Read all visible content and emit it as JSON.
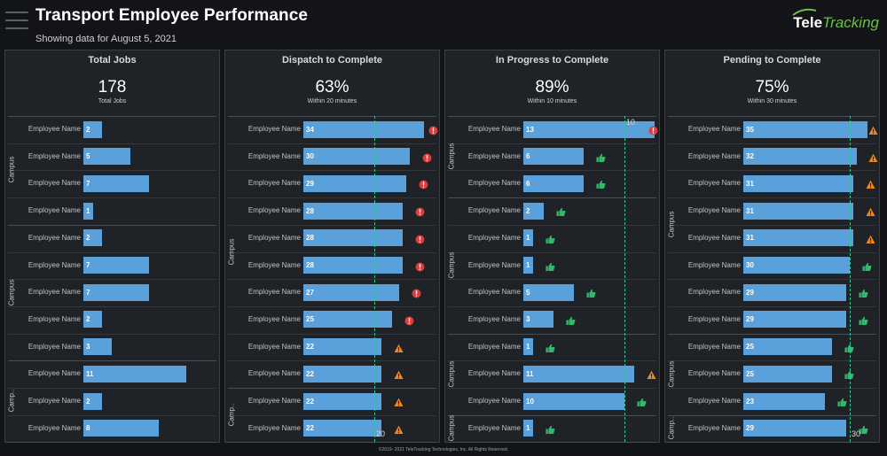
{
  "header": {
    "title": "Transport Employee Performance",
    "subtitle": "Showing data for August 5, 2021",
    "logo_text_1": "Tele",
    "logo_text_2": "Tracking"
  },
  "footer": {
    "text": "©2019- 2021 TeleTracking Technologies, Inc.  All Rights Reserved."
  },
  "colors": {
    "bar": "#5aa0db",
    "reference_line": "#33c89a",
    "alert": "#e03a3a",
    "warning": "#f0881c",
    "good": "#34b86c"
  },
  "panels": [
    {
      "title": "Total Jobs",
      "kpi_value": "178",
      "kpi_sub": "Total Jobs",
      "bar_max": 14,
      "reference": null,
      "reference_label": "",
      "campus_labels": [
        "Campus",
        "Campus",
        "Camp.."
      ],
      "rows": [
        {
          "label": "Employee Name",
          "value": 2,
          "status": ""
        },
        {
          "label": "Employee Name",
          "value": 5,
          "status": ""
        },
        {
          "label": "Employee Name",
          "value": 7,
          "status": ""
        },
        {
          "label": "Employee Name",
          "value": 1,
          "status": ""
        },
        {
          "label": "Employee Name",
          "value": 2,
          "status": ""
        },
        {
          "label": "Employee Name",
          "value": 7,
          "status": ""
        },
        {
          "label": "Employee Name",
          "value": 7,
          "status": ""
        },
        {
          "label": "Employee Name",
          "value": 2,
          "status": ""
        },
        {
          "label": "Employee Name",
          "value": 3,
          "status": ""
        },
        {
          "label": "Employee Name",
          "value": 11,
          "status": ""
        },
        {
          "label": "Employee Name",
          "value": 2,
          "status": ""
        },
        {
          "label": "Employee Name",
          "value": 8,
          "status": ""
        }
      ]
    },
    {
      "title": "Dispatch to Complete",
      "kpi_value": "63%",
      "kpi_sub": "Within 20 minutes",
      "bar_max": 37,
      "reference": 20,
      "reference_label": "20",
      "campus_labels": [
        "Campus",
        "Camp.."
      ],
      "rows": [
        {
          "label": "Employee Name",
          "value": 34,
          "status": "alert"
        },
        {
          "label": "Employee Name",
          "value": 30,
          "status": "alert"
        },
        {
          "label": "Employee Name",
          "value": 29,
          "status": "alert"
        },
        {
          "label": "Employee Name",
          "value": 28,
          "status": "alert"
        },
        {
          "label": "Employee Name",
          "value": 28,
          "status": "alert"
        },
        {
          "label": "Employee Name",
          "value": 28,
          "status": "alert"
        },
        {
          "label": "Employee Name",
          "value": 27,
          "status": "alert"
        },
        {
          "label": "Employee Name",
          "value": 25,
          "status": "alert"
        },
        {
          "label": "Employee Name",
          "value": 22,
          "status": "warning"
        },
        {
          "label": "Employee Name",
          "value": 22,
          "status": "warning"
        },
        {
          "label": "Employee Name",
          "value": 22,
          "status": "warning"
        },
        {
          "label": "Employee Name",
          "value": 22,
          "status": "warning"
        }
      ]
    },
    {
      "title": "In Progress to Complete",
      "kpi_value": "89%",
      "kpi_sub": "Within 10 minutes",
      "bar_max": 13,
      "reference": 10,
      "reference_label": "10",
      "campus_labels": [
        "Campus",
        "Campus",
        "Campus",
        "Campus"
      ],
      "rows": [
        {
          "label": "Employee Name",
          "value": 13,
          "status": "alert"
        },
        {
          "label": "Employee Name",
          "value": 6,
          "status": "good"
        },
        {
          "label": "Employee Name",
          "value": 6,
          "status": "good"
        },
        {
          "label": "Employee Name",
          "value": 2,
          "status": "good"
        },
        {
          "label": "Employee Name",
          "value": 1,
          "status": "good"
        },
        {
          "label": "Employee Name",
          "value": 1,
          "status": "good"
        },
        {
          "label": "Employee Name",
          "value": 5,
          "status": "good"
        },
        {
          "label": "Employee Name",
          "value": 3,
          "status": "good"
        },
        {
          "label": "Employee Name",
          "value": 1,
          "status": "good"
        },
        {
          "label": "Employee Name",
          "value": 11,
          "status": "warning"
        },
        {
          "label": "Employee Name",
          "value": 10,
          "status": "good"
        },
        {
          "label": "Employee Name",
          "value": 1,
          "status": "good"
        }
      ]
    },
    {
      "title": "Pending to Complete",
      "kpi_value": "75%",
      "kpi_sub": "Within 30 minutes",
      "bar_max": 37,
      "reference": 30,
      "reference_label": "30",
      "campus_labels": [
        "Campus",
        "Campus",
        "Camp.."
      ],
      "rows": [
        {
          "label": "Employee Name",
          "value": 35,
          "status": "warning"
        },
        {
          "label": "Employee Name",
          "value": 32,
          "status": "warning"
        },
        {
          "label": "Employee Name",
          "value": 31,
          "status": "warning"
        },
        {
          "label": "Employee Name",
          "value": 31,
          "status": "warning"
        },
        {
          "label": "Employee Name",
          "value": 31,
          "status": "warning"
        },
        {
          "label": "Employee Name",
          "value": 30,
          "status": "good"
        },
        {
          "label": "Employee Name",
          "value": 29,
          "status": "good"
        },
        {
          "label": "Employee Name",
          "value": 29,
          "status": "good"
        },
        {
          "label": "Employee Name",
          "value": 25,
          "status": "good"
        },
        {
          "label": "Employee Name",
          "value": 25,
          "status": "good"
        },
        {
          "label": "Employee Name",
          "value": 23,
          "status": "good"
        },
        {
          "label": "Employee Name",
          "value": 29,
          "status": "good"
        }
      ]
    }
  ]
}
